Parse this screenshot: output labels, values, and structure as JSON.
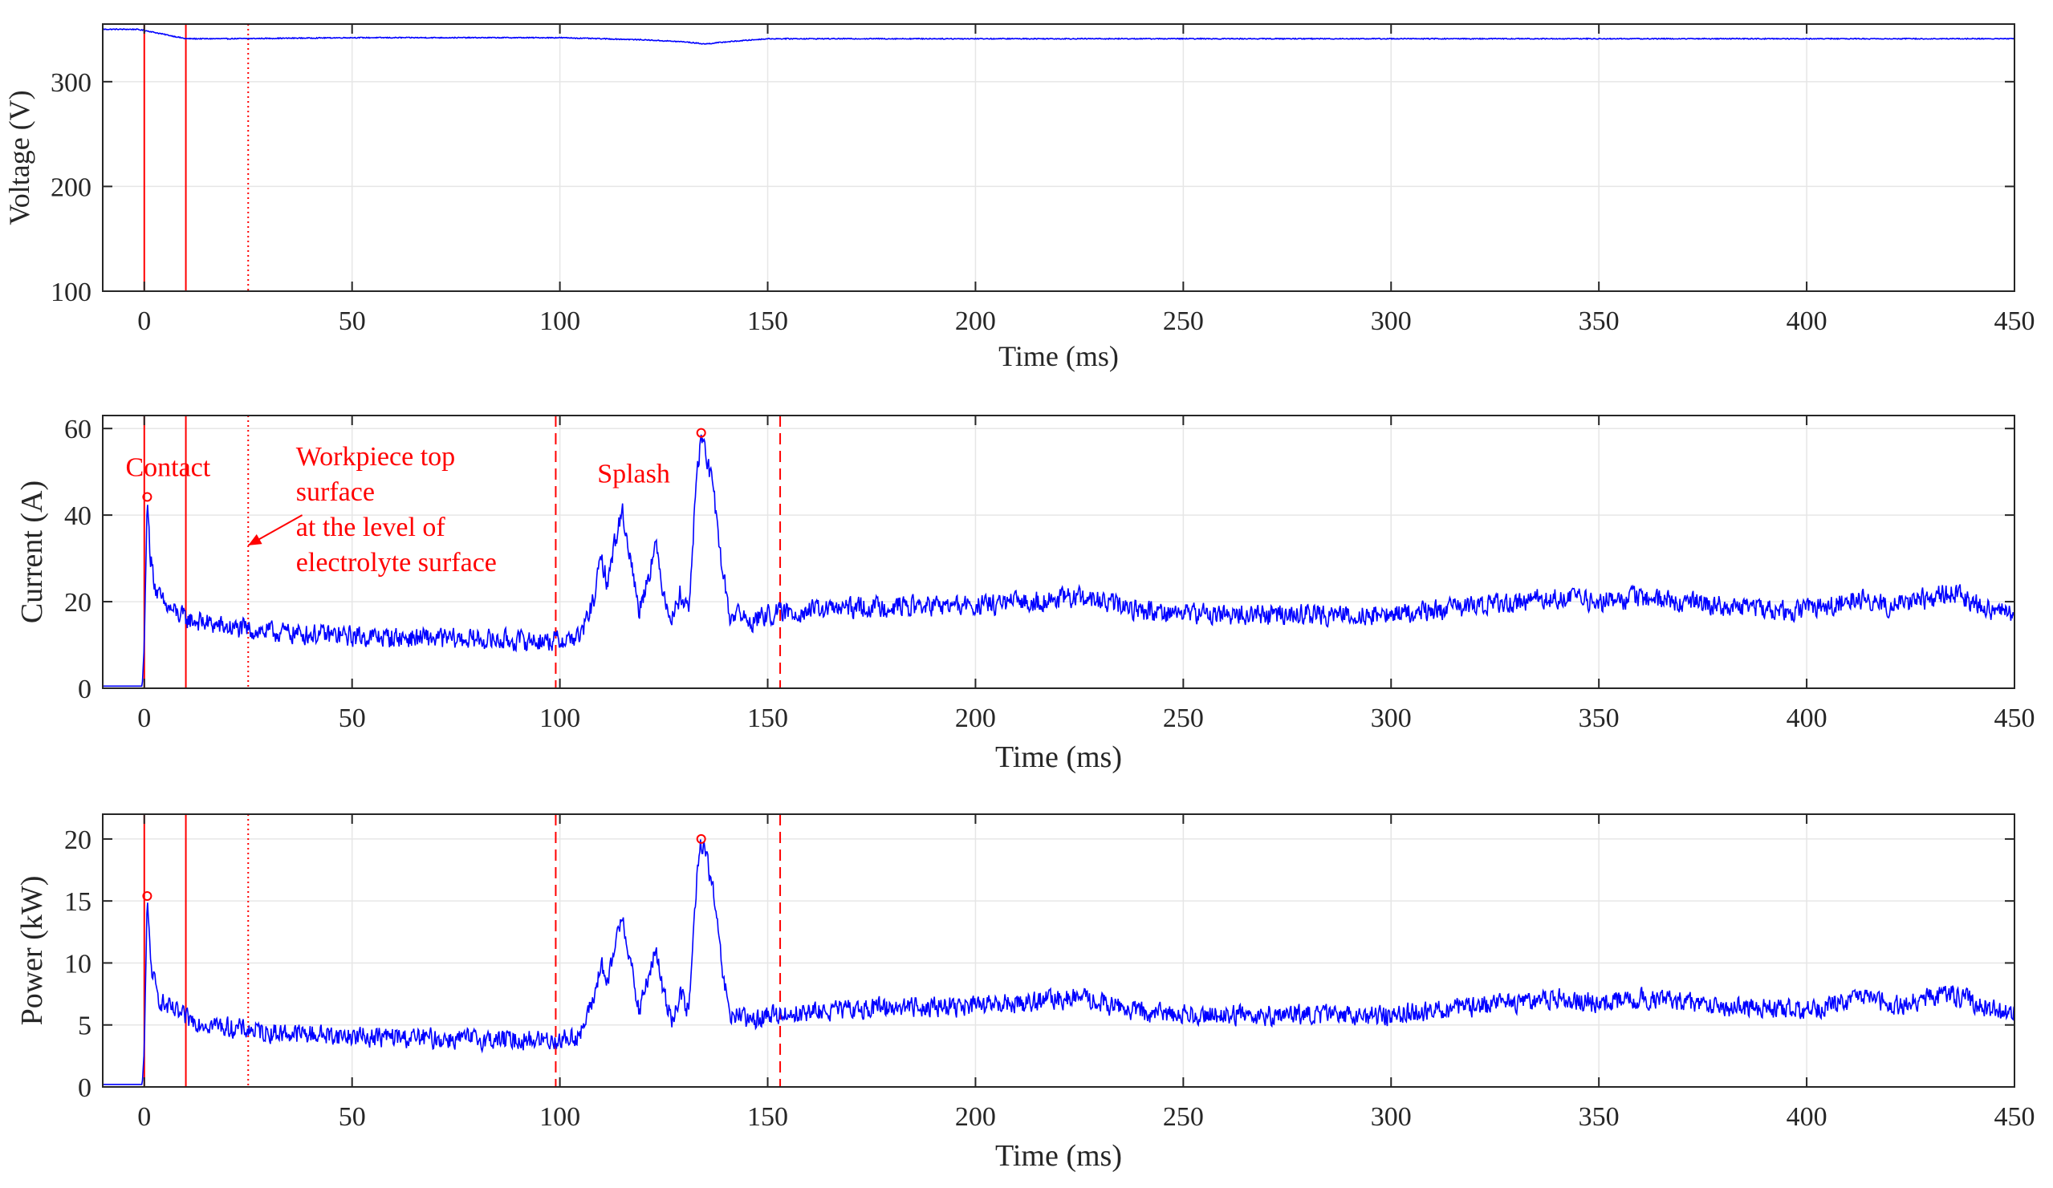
{
  "chart_data": [
    {
      "type": "line",
      "xlabel": "Time (ms)",
      "ylabel": "Voltage (V)",
      "xlim": [
        -10,
        450
      ],
      "ylim": [
        100,
        355
      ],
      "xticks": [
        0,
        50,
        100,
        150,
        200,
        250,
        300,
        350,
        400,
        450
      ],
      "yticks": [
        100,
        200,
        300
      ],
      "grid": true,
      "series": [
        {
          "color": "#0000ff",
          "x": [
            -10,
            -2,
            0,
            5,
            10,
            20,
            50,
            100,
            120,
            130,
            135,
            140,
            150,
            200,
            250,
            300,
            350,
            400,
            450
          ],
          "y": [
            350,
            350,
            349,
            345,
            341,
            341,
            342,
            342,
            340,
            338,
            336,
            338,
            341,
            341,
            341,
            341,
            341,
            341,
            341
          ]
        }
      ],
      "vlines": [
        {
          "x": 0,
          "style": "solid",
          "color": "#ff0000"
        },
        {
          "x": 10,
          "style": "solid",
          "color": "#ff0000"
        },
        {
          "x": 25,
          "style": "dotted",
          "color": "#ff0000"
        }
      ]
    },
    {
      "type": "line",
      "xlabel": "Time (ms)",
      "ylabel": "Current (A)",
      "xlim": [
        -10,
        450
      ],
      "ylim": [
        0,
        63
      ],
      "xticks": [
        0,
        50,
        100,
        150,
        200,
        250,
        300,
        350,
        400,
        450
      ],
      "yticks": [
        0,
        20,
        40,
        60
      ],
      "grid": true,
      "series": [
        {
          "color": "#0000ff",
          "noise": 2.2,
          "x": [
            -10,
            -0.5,
            0,
            0.7,
            1.5,
            3,
            5,
            10,
            20,
            30,
            50,
            70,
            90,
            97,
            100,
            105,
            108,
            110,
            111.5,
            113,
            115,
            117,
            119,
            121,
            123,
            125,
            127,
            129,
            131,
            133,
            134,
            135,
            137,
            139,
            141,
            143,
            145,
            150,
            160,
            180,
            200,
            225,
            240,
            260,
            280,
            300,
            320,
            340,
            350,
            360,
            380,
            400,
            414,
            420,
            435,
            445,
            450
          ],
          "y": [
            0.5,
            0.5,
            10,
            44,
            30,
            22,
            19,
            16,
            14,
            13,
            12,
            11.5,
            11,
            11,
            11,
            12,
            20,
            30,
            24,
            33,
            41,
            30,
            18,
            25,
            33,
            22,
            16,
            22,
            18,
            50,
            58,
            55,
            45,
            28,
            16,
            18,
            15,
            17,
            18,
            19,
            19,
            21,
            18,
            17,
            17,
            17,
            19,
            21,
            20,
            21,
            19,
            18,
            21,
            19,
            22,
            18,
            17
          ]
        }
      ],
      "markers": [
        {
          "x": 0.7,
          "y": 44.2,
          "color": "#ff0000"
        },
        {
          "x": 134,
          "y": 59,
          "color": "#ff0000"
        }
      ],
      "vlines": [
        {
          "x": 0,
          "style": "solid",
          "color": "#ff0000"
        },
        {
          "x": 10,
          "style": "solid",
          "color": "#ff0000"
        },
        {
          "x": 25,
          "style": "dotted",
          "color": "#ff0000"
        },
        {
          "x": 99,
          "style": "dashed",
          "color": "#ff0000"
        },
        {
          "x": 153,
          "style": "dashed",
          "color": "#ff0000"
        }
      ],
      "annotations": [
        {
          "lines": [
            "Contact"
          ],
          "x": -4.5,
          "y": 49
        },
        {
          "lines": [
            "Workpiece top",
            "surface",
            "at the level of",
            "electrolyte surface"
          ],
          "x": 36.5,
          "y": 51.5
        },
        {
          "lines": [
            "Splash"
          ],
          "x": 109,
          "y": 47.5
        }
      ],
      "arrow": {
        "from": {
          "x": 38,
          "y": 40
        },
        "to": {
          "x": 25,
          "y": 33
        },
        "color": "#ff0000"
      }
    },
    {
      "type": "line",
      "xlabel": "Time (ms)",
      "ylabel": "Power (kW)",
      "xlim": [
        -10,
        450
      ],
      "ylim": [
        0,
        22
      ],
      "xticks": [
        0,
        50,
        100,
        150,
        200,
        250,
        300,
        350,
        400,
        450
      ],
      "yticks": [
        0,
        5,
        10,
        15,
        20
      ],
      "grid": true,
      "series": [
        {
          "color": "#0000ff",
          "noise": 0.75,
          "x": [
            -10,
            -0.5,
            0,
            0.7,
            1.5,
            3,
            5,
            10,
            20,
            30,
            50,
            70,
            90,
            97,
            100,
            105,
            108,
            110,
            111.5,
            113,
            115,
            117,
            119,
            121,
            123,
            125,
            127,
            129,
            131,
            133,
            134,
            135,
            137,
            139,
            141,
            143,
            145,
            150,
            160,
            180,
            200,
            225,
            240,
            260,
            280,
            300,
            320,
            340,
            350,
            360,
            380,
            400,
            414,
            420,
            435,
            445,
            450
          ],
          "y": [
            0.2,
            0.2,
            3,
            15.5,
            10,
            7.5,
            6.5,
            5.5,
            4.8,
            4.4,
            4.1,
            3.9,
            3.8,
            3.8,
            3.8,
            4.2,
            7,
            10,
            8,
            11,
            14,
            10,
            6,
            8.5,
            11,
            7.5,
            5.5,
            7.5,
            6,
            17,
            19.8,
            19,
            15.5,
            9.5,
            5.5,
            6,
            5.2,
            5.8,
            6,
            6.5,
            6.5,
            7.2,
            6,
            5.8,
            5.8,
            5.8,
            6.5,
            7.2,
            6.8,
            7.2,
            6.5,
            6.2,
            7.2,
            6.5,
            7.5,
            6.2,
            5.8
          ]
        }
      ],
      "markers": [
        {
          "x": 0.7,
          "y": 15.4,
          "color": "#ff0000"
        },
        {
          "x": 134,
          "y": 20,
          "color": "#ff0000"
        }
      ],
      "vlines": [
        {
          "x": 0,
          "style": "solid",
          "color": "#ff0000"
        },
        {
          "x": 10,
          "style": "solid",
          "color": "#ff0000"
        },
        {
          "x": 25,
          "style": "dotted",
          "color": "#ff0000"
        },
        {
          "x": 99,
          "style": "dashed",
          "color": "#ff0000"
        },
        {
          "x": 153,
          "style": "dashed",
          "color": "#ff0000"
        }
      ]
    }
  ]
}
